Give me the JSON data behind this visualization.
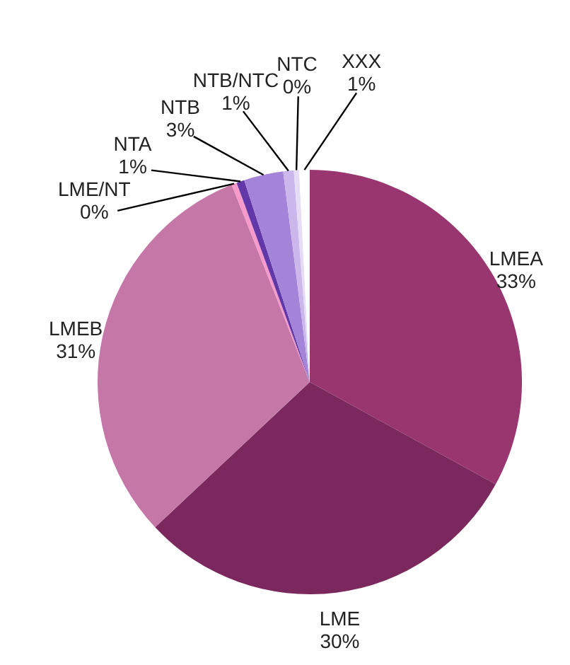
{
  "chart_data": {
    "type": "pie",
    "categories": [
      "LMEA",
      "LME",
      "LMEB",
      "LME/NT",
      "NTA",
      "NTB",
      "NTB/NTC",
      "NTC",
      "XXX"
    ],
    "values": [
      33,
      30,
      31,
      0.4,
      0.6,
      3,
      0.8,
      0.4,
      0.8
    ],
    "value_labels": [
      "33%",
      "30%",
      "31%",
      "0%",
      "1%",
      "3%",
      "1%",
      "0%",
      "1%"
    ],
    "colors": [
      "#993670",
      "#7a285e",
      "#c577a8",
      "#f59acb",
      "#6238a8",
      "#a384d9",
      "#cbb7ec",
      "#e6dcf6",
      "#ffffff"
    ]
  }
}
